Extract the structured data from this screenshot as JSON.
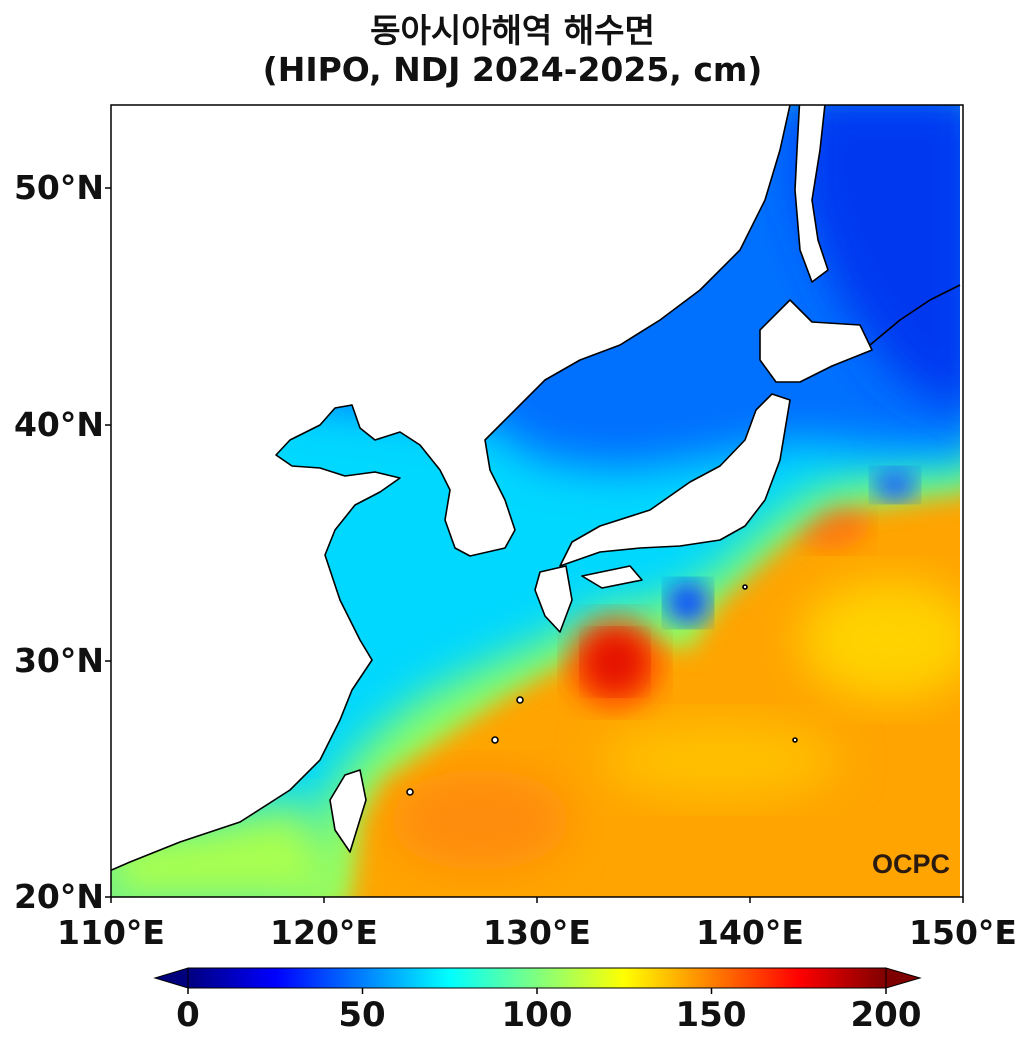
{
  "title": {
    "line1": "동아시아해역 해수면",
    "line2": "(HIPO, NDJ 2024-2025, cm)"
  },
  "map": {
    "variable": "sea level",
    "units": "cm",
    "lon_range": [
      110,
      150
    ],
    "lat_range": [
      20,
      53.5
    ],
    "lat_ticks": [
      "50°N",
      "40°N",
      "30°N",
      "20°N"
    ],
    "lon_ticks": [
      "110°E",
      "120°E",
      "130°E",
      "140°E",
      "150°E"
    ],
    "logo": "OCPC"
  },
  "colorbar": {
    "colormap": "jet",
    "range": [
      0,
      200
    ],
    "extend": "both",
    "ticks": [
      "0",
      "50",
      "100",
      "150",
      "200"
    ],
    "colors": [
      "#00007f",
      "#0000ff",
      "#00ffff",
      "#ffff00",
      "#ff0000",
      "#7f0000"
    ]
  }
}
